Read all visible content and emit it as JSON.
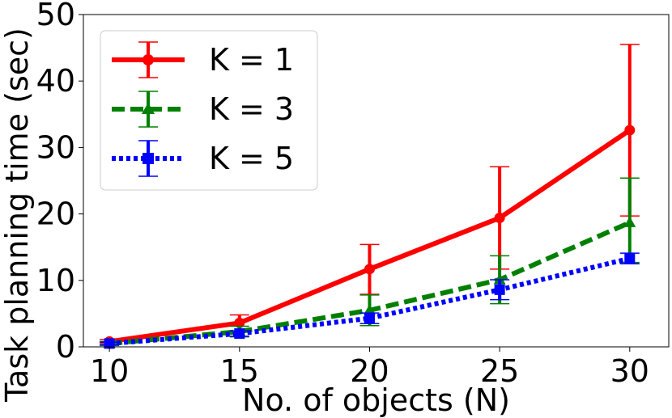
{
  "chart_data": {
    "type": "line",
    "title": "",
    "xlabel": "No. of objects (N)",
    "ylabel": "Task planning time (sec)",
    "x": [
      10,
      15,
      20,
      25,
      30
    ],
    "xlim": [
      9.0,
      31.5
    ],
    "ylim": [
      0,
      50
    ],
    "xticks": [
      "10",
      "15",
      "20",
      "25",
      "30"
    ],
    "yticks": [
      "0",
      "10",
      "20",
      "30",
      "40",
      "50"
    ],
    "grid": false,
    "legend_position": "top-left",
    "series": [
      {
        "name": "K = 1",
        "color": "#ff0000",
        "line_style": "solid",
        "marker": "circle",
        "values": [
          0.8,
          3.6,
          11.7,
          19.4,
          32.6
        ],
        "err_low": [
          0.3,
          1.2,
          3.8,
          7.7,
          12.9
        ],
        "err_high": [
          0.3,
          1.2,
          3.7,
          7.7,
          12.9
        ]
      },
      {
        "name": "K = 3",
        "color": "#008000",
        "line_style": "dashed",
        "marker": "triangle",
        "values": [
          0.5,
          2.3,
          5.5,
          10.1,
          18.7
        ],
        "err_low": [
          0.3,
          0.8,
          2.3,
          3.6,
          6.0
        ],
        "err_high": [
          0.3,
          0.8,
          2.3,
          3.6,
          6.7
        ]
      },
      {
        "name": "K = 5",
        "color": "#0000ff",
        "line_style": "dotted",
        "marker": "square",
        "values": [
          0.5,
          2.0,
          4.3,
          8.6,
          13.3
        ],
        "err_low": [
          0.2,
          0.4,
          0.8,
          1.5,
          0.8
        ],
        "err_high": [
          0.2,
          0.4,
          0.8,
          1.5,
          0.8
        ]
      }
    ]
  }
}
